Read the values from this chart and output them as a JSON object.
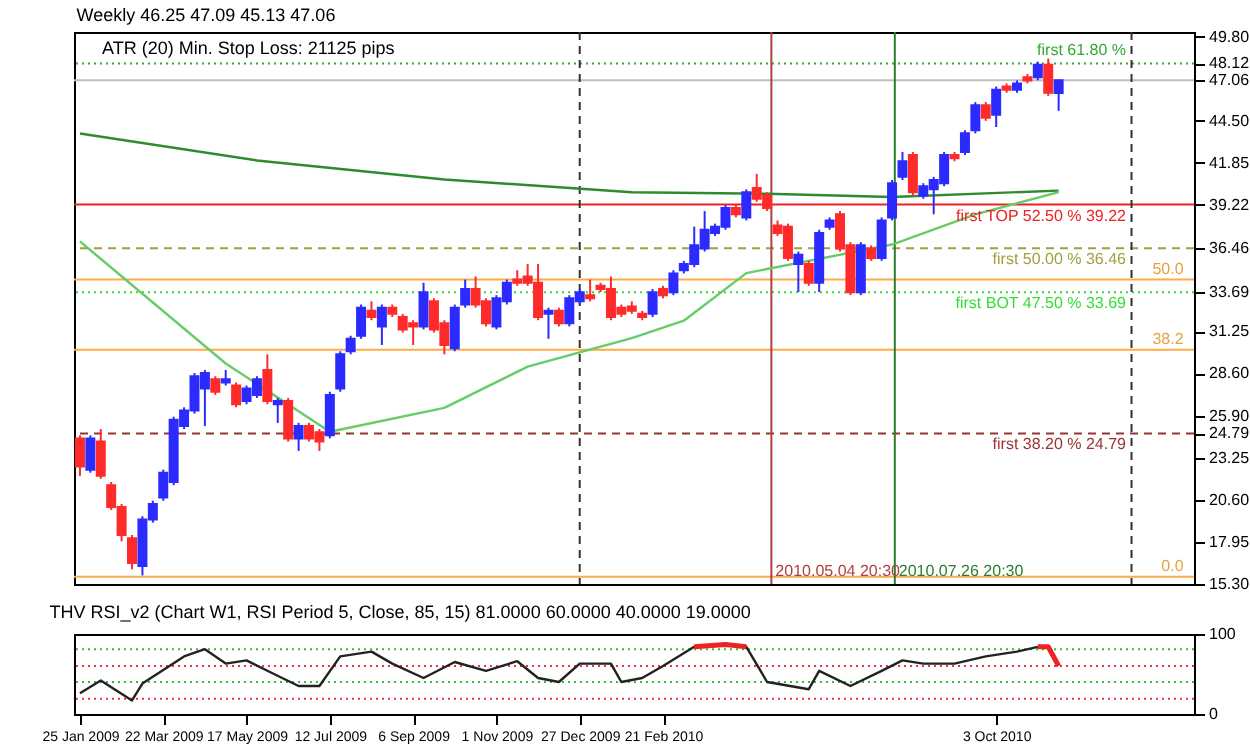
{
  "chart_data": [
    {
      "type": "candlestick",
      "title": "Weekly  46.25 47.09 45.13 47.06",
      "annotations": [
        "ATR (20)    Min. Stop Loss:   21125 pips",
        {
          "text": "50.0",
          "x": "2011-02-06",
          "y": 34.49
        },
        {
          "text": "38.2",
          "x": "2011-02-06",
          "y": 30.07
        },
        {
          "text": "0.0",
          "x": "2011-02-06",
          "y": 15.76
        }
      ],
      "x": [
        "2009-01-25",
        "2009-02-01",
        "2009-02-08",
        "2009-02-15",
        "2009-02-22",
        "2009-03-01",
        "2009-03-08",
        "2009-03-15",
        "2009-03-22",
        "2009-03-29",
        "2009-04-05",
        "2009-04-12",
        "2009-04-19",
        "2009-04-26",
        "2009-05-03",
        "2009-05-10",
        "2009-05-17",
        "2009-05-24",
        "2009-05-31",
        "2009-06-07",
        "2009-06-14",
        "2009-06-21",
        "2009-06-28",
        "2009-07-05",
        "2009-07-12",
        "2009-07-19",
        "2009-07-26",
        "2009-08-02",
        "2009-08-09",
        "2009-08-16",
        "2009-08-23",
        "2009-08-30",
        "2009-09-06",
        "2009-09-13",
        "2009-09-20",
        "2009-09-27",
        "2009-10-04",
        "2009-10-11",
        "2009-10-18",
        "2009-10-25",
        "2009-11-01",
        "2009-11-08",
        "2009-11-15",
        "2009-11-22",
        "2009-11-29",
        "2009-12-06",
        "2009-12-13",
        "2009-12-20",
        "2009-12-27",
        "2010-01-03",
        "2010-01-10",
        "2010-01-17",
        "2010-01-24",
        "2010-01-31",
        "2010-02-07",
        "2010-02-14",
        "2010-02-21",
        "2010-02-28",
        "2010-03-07",
        "2010-03-14",
        "2010-03-21",
        "2010-03-28",
        "2010-04-04",
        "2010-04-11",
        "2010-04-18",
        "2010-04-25",
        "2010-05-02",
        "2010-05-09",
        "2010-05-16",
        "2010-05-23",
        "2010-05-30",
        "2010-06-06",
        "2010-06-13",
        "2010-06-20",
        "2010-06-27",
        "2010-07-04",
        "2010-07-11",
        "2010-07-18",
        "2010-07-25",
        "2010-08-01",
        "2010-08-08",
        "2010-08-15",
        "2010-08-22",
        "2010-08-29",
        "2010-09-05",
        "2010-09-12",
        "2010-09-19",
        "2010-09-26",
        "2010-10-03",
        "2010-10-10",
        "2010-10-17",
        "2010-10-24",
        "2010-10-31",
        "2010-11-07",
        "2010-11-14"
      ],
      "ohlc": [
        [
          24.48,
          24.67,
          22.12,
          22.71
        ],
        [
          22.51,
          24.67,
          22.32,
          24.48
        ],
        [
          24.28,
          25.07,
          21.93,
          22.12
        ],
        [
          21.53,
          21.73,
          19.97,
          20.16
        ],
        [
          20.16,
          20.35,
          17.99,
          18.39
        ],
        [
          18.19,
          18.39,
          16.23,
          16.62
        ],
        [
          16.43,
          19.57,
          15.84,
          19.37
        ],
        [
          19.37,
          20.55,
          19.17,
          20.35
        ],
        [
          20.75,
          22.51,
          20.55,
          22.32
        ],
        [
          21.73,
          25.85,
          21.53,
          25.65
        ],
        [
          25.26,
          26.44,
          25.07,
          26.24
        ],
        [
          26.24,
          28.6,
          26.04,
          28.4
        ],
        [
          27.62,
          28.79,
          25.26,
          28.6
        ],
        [
          28.21,
          28.4,
          27.22,
          27.42
        ],
        [
          28.01,
          28.79,
          27.81,
          28.21
        ],
        [
          27.81,
          28.01,
          26.44,
          26.63
        ],
        [
          26.83,
          27.81,
          26.63,
          27.62
        ],
        [
          27.22,
          28.4,
          27.03,
          28.21
        ],
        [
          28.79,
          29.78,
          26.63,
          26.83
        ],
        [
          26.63,
          27.03,
          25.46,
          26.83
        ],
        [
          26.83,
          27.03,
          24.28,
          24.48
        ],
        [
          24.48,
          25.46,
          23.69,
          25.26
        ],
        [
          25.26,
          25.46,
          24.28,
          24.48
        ],
        [
          24.87,
          25.07,
          23.69,
          24.28
        ],
        [
          24.67,
          27.42,
          24.48,
          27.22
        ],
        [
          27.62,
          29.97,
          27.42,
          29.78
        ],
        [
          29.97,
          30.95,
          29.78,
          30.76
        ],
        [
          30.95,
          32.92,
          30.76,
          32.72
        ],
        [
          32.52,
          33.12,
          31.93,
          32.13
        ],
        [
          31.54,
          32.92,
          30.37,
          32.72
        ],
        [
          32.72,
          32.92,
          32.13,
          32.33
        ],
        [
          32.13,
          32.33,
          31.15,
          31.35
        ],
        [
          31.74,
          31.93,
          30.37,
          31.54
        ],
        [
          31.54,
          34.29,
          31.35,
          33.7
        ],
        [
          33.12,
          33.31,
          31.15,
          31.35
        ],
        [
          31.74,
          31.93,
          29.78,
          30.37
        ],
        [
          30.17,
          32.92,
          29.97,
          32.72
        ],
        [
          32.92,
          34.49,
          32.72,
          33.9
        ],
        [
          33.9,
          34.69,
          32.72,
          32.92
        ],
        [
          33.12,
          33.31,
          31.54,
          31.74
        ],
        [
          31.54,
          33.51,
          31.35,
          33.31
        ],
        [
          33.12,
          34.49,
          32.92,
          34.29
        ],
        [
          34.49,
          35.08,
          34.1,
          34.29
        ],
        [
          34.69,
          35.47,
          34.1,
          34.29
        ],
        [
          34.29,
          35.47,
          31.93,
          32.13
        ],
        [
          32.33,
          32.72,
          30.76,
          32.52
        ],
        [
          32.52,
          32.72,
          31.54,
          31.74
        ],
        [
          31.74,
          33.51,
          31.54,
          33.31
        ],
        [
          33.12,
          33.9,
          32.92,
          33.7
        ],
        [
          33.51,
          34.49,
          33.12,
          33.31
        ],
        [
          34.1,
          34.29,
          33.7,
          33.9
        ],
        [
          33.9,
          34.69,
          31.93,
          32.13
        ],
        [
          32.72,
          32.92,
          32.13,
          32.33
        ],
        [
          32.8,
          33.12,
          32.33,
          32.52
        ],
        [
          32.33,
          32.52,
          31.93,
          32.13
        ],
        [
          32.33,
          33.9,
          32.13,
          33.7
        ],
        [
          33.9,
          34.1,
          33.31,
          33.51
        ],
        [
          33.7,
          35.08,
          33.51,
          34.88
        ],
        [
          35.08,
          35.67,
          34.88,
          35.47
        ],
        [
          35.47,
          37.83,
          35.27,
          36.65
        ],
        [
          36.45,
          38.81,
          36.26,
          37.63
        ],
        [
          37.43,
          38.02,
          37.24,
          37.83
        ],
        [
          37.83,
          39.2,
          37.63,
          39.0
        ],
        [
          39.0,
          39.2,
          38.41,
          38.61
        ],
        [
          38.41,
          40.18,
          38.22,
          39.99
        ],
        [
          40.26,
          41.16,
          39.4,
          39.59
        ],
        [
          39.79,
          39.99,
          38.81,
          39.0
        ],
        [
          37.9,
          38.22,
          37.24,
          37.43
        ],
        [
          37.83,
          38.02,
          35.67,
          35.86
        ],
        [
          35.47,
          36.26,
          33.7,
          36.06
        ],
        [
          35.47,
          35.67,
          34.1,
          34.29
        ],
        [
          34.29,
          37.63,
          33.7,
          37.43
        ],
        [
          37.83,
          38.41,
          37.63,
          38.22
        ],
        [
          38.61,
          38.81,
          36.26,
          36.45
        ],
        [
          36.65,
          36.85,
          33.51,
          33.7
        ],
        [
          33.7,
          36.85,
          33.51,
          36.65
        ],
        [
          36.45,
          36.65,
          35.67,
          35.86
        ],
        [
          35.86,
          38.41,
          35.67,
          38.22
        ],
        [
          38.41,
          40.77,
          38.22,
          40.57
        ],
        [
          40.97,
          42.54,
          40.77,
          41.95
        ],
        [
          42.34,
          42.54,
          39.79,
          39.99
        ],
        [
          39.79,
          40.57,
          39.59,
          40.38
        ],
        [
          40.18,
          40.97,
          38.61,
          40.77
        ],
        [
          40.57,
          42.54,
          40.38,
          42.34
        ],
        [
          42.34,
          42.54,
          41.95,
          42.14
        ],
        [
          42.54,
          43.91,
          42.34,
          43.71
        ],
        [
          43.91,
          45.68,
          43.71,
          45.48
        ],
        [
          45.48,
          45.68,
          44.5,
          44.7
        ],
        [
          44.89,
          46.66,
          44.11,
          46.46
        ],
        [
          46.66,
          46.86,
          46.27,
          46.46
        ],
        [
          46.46,
          47.05,
          46.27,
          46.86
        ],
        [
          47.25,
          47.45,
          46.86,
          47.05
        ],
        [
          47.25,
          48.23,
          47.05,
          48.03
        ],
        [
          48.03,
          48.42,
          46.07,
          46.27
        ],
        [
          46.25,
          47.09,
          45.13,
          47.06
        ]
      ],
      "colors": [
        "#ff2b2b",
        "#2b2bff",
        "#ff2b2b",
        "#ff2b2b",
        "#ff2b2b",
        "#ff2b2b",
        "#2b2bff",
        "#2b2bff",
        "#2b2bff",
        "#2b2bff",
        "#2b2bff",
        "#2b2bff",
        "#2b2bff",
        "#ff2b2b",
        "#2b2bff",
        "#ff2b2b",
        "#2b2bff",
        "#2b2bff",
        "#ff2b2b",
        "#2b2bff",
        "#ff2b2b",
        "#2b2bff",
        "#ff2b2b",
        "#ff2b2b",
        "#2b2bff",
        "#2b2bff",
        "#2b2bff",
        "#2b2bff",
        "#ff2b2b",
        "#2b2bff",
        "#ff2b2b",
        "#ff2b2b",
        "#ff2b2b",
        "#2b2bff",
        "#ff2b2b",
        "#ff2b2b",
        "#2b2bff",
        "#2b2bff",
        "#ff2b2b",
        "#ff2b2b",
        "#2b2bff",
        "#2b2bff",
        "#ff2b2b",
        "#ff2b2b",
        "#ff2b2b",
        "#2b2bff",
        "#ff2b2b",
        "#2b2bff",
        "#2b2bff",
        "#ff2b2b",
        "#ff2b2b",
        "#ff2b2b",
        "#ff2b2b",
        "#ff2b2b",
        "#ff2b2b",
        "#2b2bff",
        "#ff2b2b",
        "#2b2bff",
        "#2b2bff",
        "#2b2bff",
        "#2b2bff",
        "#2b2bff",
        "#2b2bff",
        "#ff2b2b",
        "#2b2bff",
        "#ff2b2b",
        "#ff2b2b",
        "#ff2b2b",
        "#ff2b2b",
        "#2b2bff",
        "#ff2b2b",
        "#2b2bff",
        "#2b2bff",
        "#ff2b2b",
        "#ff2b2b",
        "#2b2bff",
        "#ff2b2b",
        "#2b2bff",
        "#2b2bff",
        "#2b2bff",
        "#ff2b2b",
        "#2b2bff",
        "#2b2bff",
        "#2b2bff",
        "#ff2b2b",
        "#2b2bff",
        "#2b2bff",
        "#ff2b2b",
        "#2b2bff",
        "#ff2b2b",
        "#2b2bff",
        "#ff2b2b",
        "#2b2bff",
        "#ff2b2b",
        "#2b2bff"
      ],
      "series": [
        {
          "type": "line",
          "color": "#2e8b2e",
          "x": [
            "2009-01-25",
            "2009-05-24",
            "2009-09-27",
            "2010-01-31",
            "2010-05-02",
            "2010-07-25",
            "2010-11-14"
          ],
          "values": [
            43.7,
            42.0,
            40.8,
            40.0,
            39.9,
            39.7,
            40.1
          ]
        },
        {
          "type": "line",
          "color": "#66cc66",
          "x": [
            "2009-01-25",
            "2009-05-03",
            "2009-07-12",
            "2009-09-27",
            "2009-11-22",
            "2010-01-31",
            "2010-03-07",
            "2010-04-18",
            "2010-07-25",
            "2010-09-19",
            "2010-11-14"
          ],
          "values": [
            36.9,
            29.2,
            24.9,
            26.4,
            29.0,
            30.8,
            31.9,
            34.9,
            36.7,
            38.6,
            40.0
          ]
        }
      ],
      "xlim": [
        "2009-01-21",
        "2011-02-13"
      ],
      "ylim": [
        15.3,
        50.1
      ],
      "yticks": [
        {
          "value": 49.8,
          "label": "49.80"
        },
        {
          "value": 48.12,
          "label": "48.12"
        },
        {
          "value": 47.06,
          "label": "47.06"
        },
        {
          "value": 44.5,
          "label": "44.50"
        },
        {
          "value": 41.85,
          "label": "41.85"
        },
        {
          "value": 39.22,
          "label": "39.22"
        },
        {
          "value": 36.46,
          "label": "36.46"
        },
        {
          "value": 33.69,
          "label": "33.69"
        },
        {
          "value": 31.25,
          "label": "31.25"
        },
        {
          "value": 28.6,
          "label": "28.60"
        },
        {
          "value": 25.9,
          "label": "25.90"
        },
        {
          "value": 24.79,
          "label": "24.79"
        },
        {
          "value": 23.25,
          "label": "23.25"
        },
        {
          "value": 20.6,
          "label": "20.60"
        },
        {
          "value": 17.95,
          "label": "17.95"
        },
        {
          "value": 15.3,
          "label": "15.30"
        }
      ],
      "tick_labels": "y",
      "ref_lines": [
        {
          "axis": "y",
          "value": 48.12,
          "label": "first 61.80 %",
          "color": "#33aa33",
          "line_style": "dotted"
        },
        {
          "axis": "y",
          "value": 47.06,
          "label": null,
          "color": "#c0c0c0",
          "line_style": "solid"
        },
        {
          "axis": "y",
          "value": 39.22,
          "label": "first TOP 52.50 %   39.22",
          "color": "#ee2222",
          "line_style": "solid"
        },
        {
          "axis": "y",
          "value": 36.46,
          "label": "first 50.00 %   36.46",
          "color": "#a0a040",
          "line_style": "dashed"
        },
        {
          "axis": "y",
          "value": 34.49,
          "label": null,
          "color": "#ffaa44",
          "line_style": "solid"
        },
        {
          "axis": "y",
          "value": 33.69,
          "label": "first BOT 47.50 %   33.69",
          "color": "#33dd33",
          "line_style": "dotted"
        },
        {
          "axis": "y",
          "value": 30.07,
          "label": null,
          "color": "#ffaa44",
          "line_style": "solid"
        },
        {
          "axis": "y",
          "value": 24.79,
          "label": "first 38.20 %   24.79",
          "color": "#993333",
          "line_style": "dashed"
        },
        {
          "axis": "y",
          "value": 15.76,
          "label": null,
          "color": "#ffaa44",
          "line_style": "solid"
        },
        {
          "axis": "x",
          "value": "2009-12-27",
          "label": null,
          "color": "#333333",
          "line_style": "dashed"
        },
        {
          "axis": "x",
          "value": "2010-05-04T20:30",
          "label": "2010.05.04 20:30",
          "color": "#b04040",
          "line_style": "solid"
        },
        {
          "axis": "x",
          "value": "2010-07-26T20:30",
          "label": "2010.07.26 20:30",
          "color": "#2e7d2e",
          "line_style": "solid"
        },
        {
          "axis": "x",
          "value": "2011-01-02",
          "label": null,
          "color": "#333333",
          "line_style": "dashed"
        }
      ]
    },
    {
      "type": "line",
      "title": "THV RSI_v2  (Chart W1,  RSI Period 5,  Close,  85,  15)  81.0000 60.0000 40.0000 19.0000",
      "series": [
        {
          "color": "#222222",
          "x": [
            "2009-01-25",
            "2009-02-08",
            "2009-03-01",
            "2009-03-08",
            "2009-04-05",
            "2009-04-19",
            "2009-05-03",
            "2009-05-17",
            "2009-05-31",
            "2009-06-21",
            "2009-07-05",
            "2009-07-19",
            "2009-08-09",
            "2009-08-23",
            "2009-09-13",
            "2009-10-04",
            "2009-10-25",
            "2009-11-15",
            "2009-11-29",
            "2009-12-13",
            "2009-12-27",
            "2010-01-17",
            "2010-01-24",
            "2010-02-07",
            "2010-02-21",
            "2010-03-14",
            "2010-04-04",
            "2010-04-18",
            "2010-05-02",
            "2010-05-30",
            "2010-06-06",
            "2010-06-27",
            "2010-07-18",
            "2010-08-01",
            "2010-08-15",
            "2010-09-05",
            "2010-09-26",
            "2010-10-17",
            "2010-10-31"
          ],
          "values": [
            26,
            42,
            17,
            38,
            72,
            81,
            63,
            67,
            54,
            35,
            35,
            72,
            78,
            63,
            45,
            65,
            54,
            66,
            45,
            40,
            63,
            63,
            40,
            45,
            60,
            84,
            87,
            84,
            40,
            31,
            54,
            35,
            54,
            67,
            63,
            63,
            72,
            78,
            84
          ]
        },
        {
          "color": "#ee2222",
          "x": [
            "2010-03-14",
            "2010-04-04",
            "2010-04-18"
          ],
          "values": [
            84,
            87,
            84
          ]
        },
        {
          "color": "#ee2222",
          "x": [
            "2010-10-31",
            "2010-11-07",
            "2010-11-14"
          ],
          "values": [
            84,
            84,
            60
          ]
        }
      ],
      "xlim": [
        "2009-01-21",
        "2011-02-13"
      ],
      "ylim": [
        0,
        100
      ],
      "yticks": [
        0,
        100
      ],
      "xticks": [
        {
          "value": "2009-01-25",
          "label": "25 Jan 2009"
        },
        {
          "value": "2009-03-22",
          "label": "22 Mar 2009"
        },
        {
          "value": "2009-05-17",
          "label": "17 May 2009"
        },
        {
          "value": "2009-07-12",
          "label": "12 Jul 2009"
        },
        {
          "value": "2009-09-06",
          "label": "6 Sep 2009"
        },
        {
          "value": "2009-11-01",
          "label": "1 Nov 2009"
        },
        {
          "value": "2009-12-27",
          "label": "27 Dec 2009"
        },
        {
          "value": "2010-02-21",
          "label": "21 Feb 2010"
        },
        {
          "value": "2010-10-03",
          "label": "3 Oct 2010"
        }
      ],
      "ref_lines": [
        {
          "axis": "y",
          "value": 81,
          "label": null,
          "color": "#33bb33",
          "line_style": "dotted"
        },
        {
          "axis": "y",
          "value": 60,
          "label": null,
          "color": "#ee3333",
          "line_style": "dotted"
        },
        {
          "axis": "y",
          "value": 40,
          "label": null,
          "color": "#33bb33",
          "line_style": "dotted"
        },
        {
          "axis": "y",
          "value": 19,
          "label": null,
          "color": "#ee3333",
          "line_style": "dotted"
        }
      ]
    }
  ]
}
